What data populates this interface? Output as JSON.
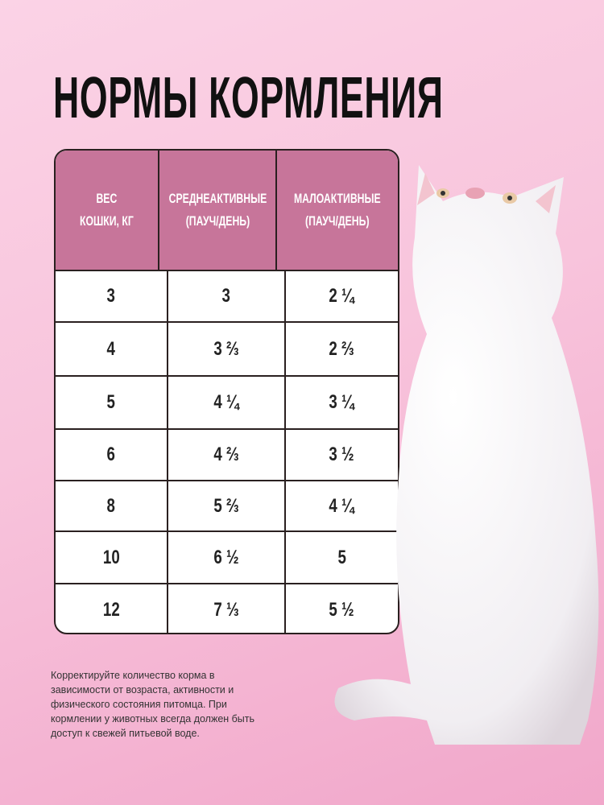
{
  "title": "НОРМЫ КОРМЛЕНИЯ",
  "table": {
    "headers": [
      "ВЕС\nКОШКИ, КГ",
      "СРЕДНЕАКТИВНЫЕ\n(ПАУЧ/ДЕНЬ)",
      "МАЛОАКТИВНЫЕ\n(ПАУЧ/ДЕНЬ)"
    ],
    "rows": [
      [
        "3",
        "3",
        "2 ¼"
      ],
      [
        "4",
        "3 ⅔",
        "2 ⅔"
      ],
      [
        "5",
        "4 ¼",
        "3 ¼"
      ],
      [
        "6",
        "4 ⅔",
        "3 ½"
      ],
      [
        "8",
        "5 ⅔",
        "4 ¼"
      ],
      [
        "10",
        "6 ½",
        "5"
      ],
      [
        "12",
        "7 ⅓",
        "5 ½"
      ]
    ]
  },
  "note": "Корректируйте количество корма в зависимости от возраста, активности и физического состояния питомца. При кормлении у животных всегда должен быть доступ к свежей питьевой воде.",
  "colors": {
    "header": "#c7759a",
    "background": "#f8c4dc"
  },
  "image": "white-cat-photo"
}
